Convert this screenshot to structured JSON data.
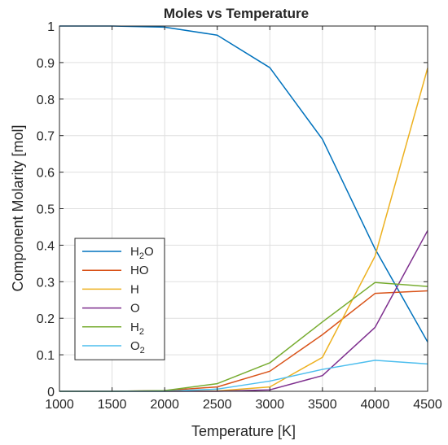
{
  "chart_data": {
    "type": "line",
    "title": "Moles vs Temperature",
    "xlabel": "Temperature [K]",
    "ylabel": "Component Molarity [mol]",
    "xlim": [
      1000,
      4500
    ],
    "ylim": [
      0,
      1
    ],
    "xticks": [
      1000,
      1500,
      2000,
      2500,
      3000,
      3500,
      4000,
      4500
    ],
    "yticks": [
      0,
      0.1,
      0.2,
      0.3,
      0.4,
      0.5,
      0.6,
      0.7,
      0.8,
      0.9,
      1
    ],
    "xtick_labels": [
      "1000",
      "1500",
      "2000",
      "2500",
      "3000",
      "3500",
      "4000",
      "4500"
    ],
    "ytick_labels": [
      "0",
      "0.1",
      "0.2",
      "0.3",
      "0.4",
      "0.5",
      "0.6",
      "0.7",
      "0.8",
      "0.9",
      "1"
    ],
    "grid": true,
    "legend_position": "bottom-left",
    "x": [
      1000,
      1500,
      2000,
      2500,
      3000,
      3500,
      4000,
      4500
    ],
    "series": [
      {
        "name": "H2O",
        "label_main": "H",
        "label_sub": "2",
        "label_tail": "O",
        "color": "#0072bd",
        "values": [
          1.0,
          1.0,
          0.997,
          0.975,
          0.886,
          0.69,
          0.39,
          0.135
        ]
      },
      {
        "name": "HO",
        "label_main": "HO",
        "label_sub": "",
        "label_tail": "",
        "color": "#d95319",
        "values": [
          0.0,
          0.0,
          0.002,
          0.012,
          0.055,
          0.155,
          0.268,
          0.275
        ]
      },
      {
        "name": "H",
        "label_main": "H",
        "label_sub": "",
        "label_tail": "",
        "color": "#edb120",
        "values": [
          0.0,
          0.0,
          0.0,
          0.001,
          0.012,
          0.093,
          0.37,
          0.885
        ]
      },
      {
        "name": "O",
        "label_main": "O",
        "label_sub": "",
        "label_tail": "",
        "color": "#7e2f8e",
        "values": [
          0.0,
          0.0,
          0.0,
          0.0,
          0.004,
          0.043,
          0.175,
          0.44
        ]
      },
      {
        "name": "H2",
        "label_main": "H",
        "label_sub": "2",
        "label_tail": "",
        "color": "#77ac30",
        "values": [
          0.0,
          0.0,
          0.002,
          0.021,
          0.078,
          0.19,
          0.298,
          0.287
        ]
      },
      {
        "name": "O2",
        "label_main": "O",
        "label_sub": "2",
        "label_tail": "",
        "color": "#4dbeee",
        "values": [
          0.0,
          0.0,
          0.0,
          0.006,
          0.028,
          0.06,
          0.085,
          0.075
        ]
      }
    ]
  }
}
